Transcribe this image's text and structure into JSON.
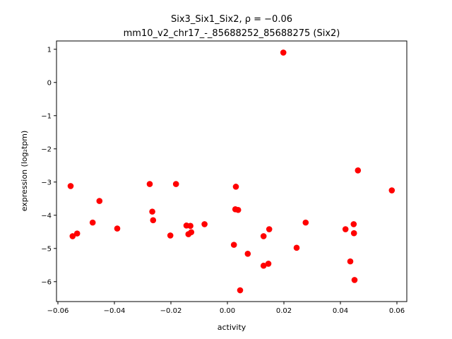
{
  "chart_data": {
    "type": "scatter",
    "title_line1": "Six3_Six1_Six2, ρ = −0.06",
    "title_line2": "mm10_v2_chr17_-_85688252_85688275 (Six2)",
    "xlabel": "activity",
    "ylabel": "expression (log₂tpm)",
    "xlim": [
      -0.0605,
      0.0635
    ],
    "ylim": [
      -6.6,
      1.25
    ],
    "x_ticks": [
      -0.06,
      -0.04,
      -0.02,
      0.0,
      0.02,
      0.04,
      0.06
    ],
    "x_tick_labels": [
      "−0.06",
      "−0.04",
      "−0.02",
      "0.00",
      "0.02",
      "0.04",
      "0.06"
    ],
    "y_ticks": [
      1,
      0,
      -1,
      -2,
      -3,
      -4,
      -5,
      -6
    ],
    "y_tick_labels": [
      "1",
      "0",
      "−1",
      "−2",
      "−3",
      "−4",
      "−5",
      "−6"
    ],
    "grid": false,
    "marker_color": "#ff0000",
    "points": [
      {
        "x": -0.0555,
        "y": -3.12
      },
      {
        "x": -0.0548,
        "y": -4.63
      },
      {
        "x": -0.0532,
        "y": -4.55
      },
      {
        "x": -0.0477,
        "y": -4.22
      },
      {
        "x": -0.0453,
        "y": -3.57
      },
      {
        "x": -0.039,
        "y": -4.4
      },
      {
        "x": -0.0275,
        "y": -3.06
      },
      {
        "x": -0.0266,
        "y": -3.89
      },
      {
        "x": -0.0263,
        "y": -4.15
      },
      {
        "x": -0.0202,
        "y": -4.61
      },
      {
        "x": -0.0182,
        "y": -3.06
      },
      {
        "x": -0.0145,
        "y": -4.31
      },
      {
        "x": -0.0138,
        "y": -4.57
      },
      {
        "x": -0.0131,
        "y": -4.32
      },
      {
        "x": -0.0128,
        "y": -4.51
      },
      {
        "x": -0.0081,
        "y": -4.27
      },
      {
        "x": 0.0023,
        "y": -4.89
      },
      {
        "x": 0.0028,
        "y": -3.82
      },
      {
        "x": 0.003,
        "y": -3.14
      },
      {
        "x": 0.0038,
        "y": -3.84
      },
      {
        "x": 0.0045,
        "y": -6.26
      },
      {
        "x": 0.0072,
        "y": -5.16
      },
      {
        "x": 0.0128,
        "y": -4.63
      },
      {
        "x": 0.0128,
        "y": -5.52
      },
      {
        "x": 0.0145,
        "y": -5.46
      },
      {
        "x": 0.0148,
        "y": -4.42
      },
      {
        "x": 0.0198,
        "y": 0.9
      },
      {
        "x": 0.0245,
        "y": -4.98
      },
      {
        "x": 0.0277,
        "y": -4.22
      },
      {
        "x": 0.0418,
        "y": -4.42
      },
      {
        "x": 0.0435,
        "y": -5.39
      },
      {
        "x": 0.0447,
        "y": -4.27
      },
      {
        "x": 0.0448,
        "y": -4.54
      },
      {
        "x": 0.045,
        "y": -5.95
      },
      {
        "x": 0.0462,
        "y": -2.65
      },
      {
        "x": 0.0582,
        "y": -3.25
      }
    ]
  }
}
